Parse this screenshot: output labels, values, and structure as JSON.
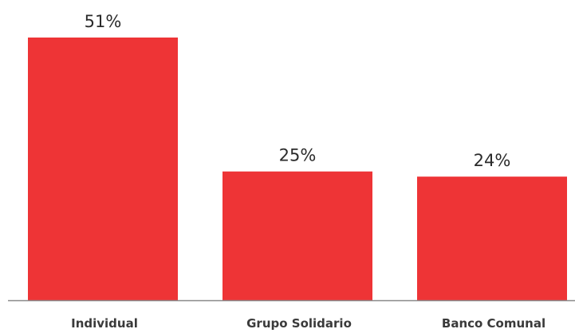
{
  "chart_data": {
    "type": "bar",
    "categories": [
      "Individual",
      "Grupo Solidario",
      "Banco Comunal"
    ],
    "values": [
      51,
      25,
      24
    ],
    "data_labels": [
      "51%",
      "25%",
      "24%"
    ],
    "title": "",
    "xlabel": "",
    "ylabel": "",
    "ylim": [
      0,
      51
    ],
    "grid": false,
    "legend": "none",
    "bar_color": "#ee3436",
    "axis_color": "#8a8a8a",
    "label_color": "#2b2b2b"
  }
}
